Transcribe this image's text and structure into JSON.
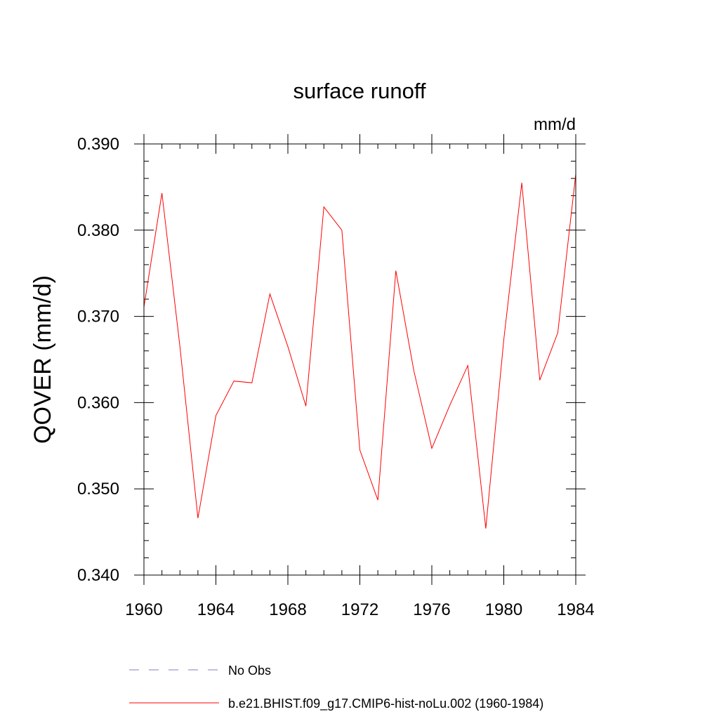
{
  "chart_data": {
    "type": "line",
    "title": "surface runoff",
    "units_label": "mm/d",
    "xlabel": "",
    "ylabel": "QOVER  (mm/d)",
    "xlim": [
      1960,
      1984
    ],
    "ylim": [
      0.34,
      0.39
    ],
    "x_ticks": [
      "1960",
      "1964",
      "1968",
      "1972",
      "1976",
      "1980",
      "1984"
    ],
    "y_ticks": [
      "0.340",
      "0.350",
      "0.360",
      "0.370",
      "0.380",
      "0.390"
    ],
    "grid": false,
    "legend_position": "bottom",
    "series": [
      {
        "name": "No Obs",
        "color": "#8080c0",
        "dash": "dashed",
        "x": [],
        "values": []
      },
      {
        "name": "b.e21.BHIST.f09_g17.CMIP6-hist-noLu.002 (1960-1984)",
        "color": "#ff0000",
        "dash": "solid",
        "x": [
          1960,
          1961,
          1962,
          1963,
          1964,
          1965,
          1966,
          1967,
          1968,
          1969,
          1970,
          1971,
          1972,
          1973,
          1974,
          1975,
          1976,
          1977,
          1978,
          1979,
          1980,
          1981,
          1982,
          1983,
          1984
        ],
        "values": [
          0.3711,
          0.3843,
          0.3665,
          0.3466,
          0.3585,
          0.3625,
          0.3623,
          0.3726,
          0.3665,
          0.3596,
          0.3827,
          0.38,
          0.3545,
          0.3487,
          0.3753,
          0.3637,
          0.3547,
          0.3597,
          0.3643,
          0.3454,
          0.3673,
          0.3855,
          0.3626,
          0.3681,
          0.3865
        ]
      }
    ]
  }
}
